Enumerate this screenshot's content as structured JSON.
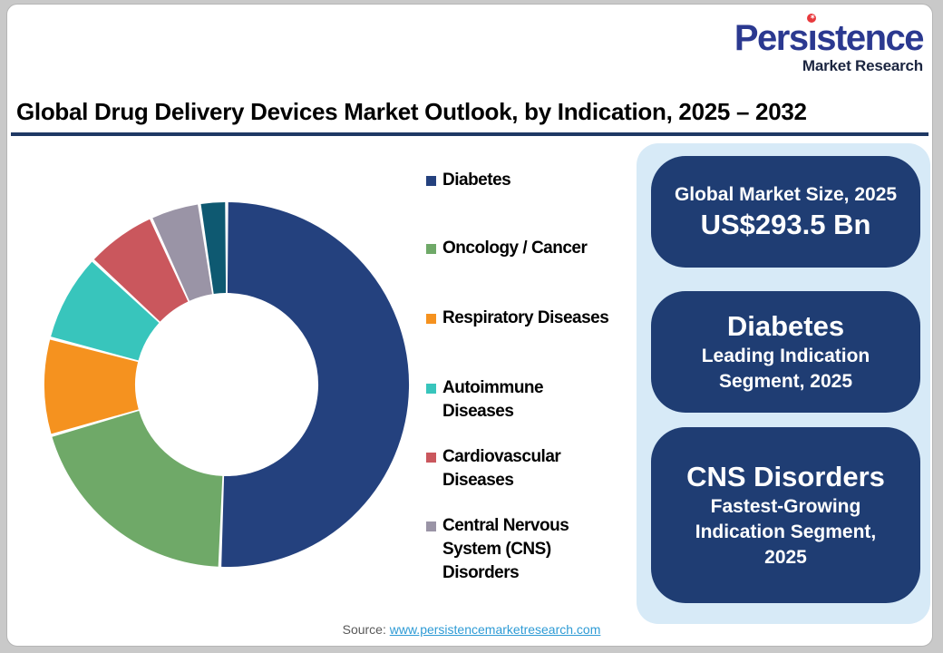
{
  "logo": {
    "brand": "Persistence",
    "brand_parts": [
      "Pers",
      "ı",
      "stence"
    ],
    "subtitle": "Market Research",
    "star_icon": "✶",
    "brand_color": "#2B3990",
    "dot_color": "#E8393D",
    "subtitle_color": "#1B2540"
  },
  "title": "Global Drug Delivery Devices Market Outlook, by Indication, 2025 – 2032",
  "chart_data": {
    "type": "pie",
    "style": "donut",
    "title": "Global Drug Delivery Devices Market Outlook, by Indication, 2025 – 2032",
    "value_unit": "% market share (estimated from arc angles; no numeric labels shown)",
    "start_angle_deg": 0,
    "direction": "clockwise",
    "inner_radius_pct": 50,
    "legend_position": "right",
    "series": [
      {
        "label": "Diabetes",
        "legend_lines": [
          "Diabetes"
        ],
        "value": 50.6,
        "color": "#24417E"
      },
      {
        "label": "Oncology / Cancer",
        "legend_lines": [
          "Oncology / Cancer"
        ],
        "value": 19.9,
        "color": "#6FA968"
      },
      {
        "label": "Respiratory Diseases",
        "legend_lines": [
          "Respiratory Diseases"
        ],
        "value": 8.6,
        "color": "#F5921F"
      },
      {
        "label": "Autoimmune Diseases",
        "legend_lines": [
          "Autoimmune",
          "Diseases"
        ],
        "value": 7.8,
        "color": "#38C5BC"
      },
      {
        "label": "Cardiovascular Diseases",
        "legend_lines": [
          "Cardiovascular",
          "Diseases"
        ],
        "value": 6.3,
        "color": "#CA575D"
      },
      {
        "label": "Central Nervous System (CNS) Disorders",
        "legend_lines": [
          "Central Nervous",
          "System (CNS)",
          "Disorders"
        ],
        "value": 4.4,
        "color": "#9A94A6"
      },
      {
        "label": "",
        "value": 2.4,
        "color": "#0E5971",
        "in_legend": false
      }
    ]
  },
  "cards": [
    {
      "title": "Global Market Size, 2025",
      "value": "US$293.5 Bn"
    },
    {
      "title": "Diabetes",
      "subtitle": "Leading Indication Segment, 2025"
    },
    {
      "title": "CNS Disorders",
      "subtitle": "Fastest-Growing Indication Segment, 2025"
    }
  ],
  "source": {
    "prefix": "Source: ",
    "link_text": "www.persistencemarketresearch.com"
  },
  "colors": {
    "page_background": "#ffffff",
    "outer_frame": "#c9c9c9",
    "title_rule": "#1F3864",
    "panel_background": "#D7EAF7",
    "card_background": "#1F3D73",
    "card_text": "#ffffff",
    "source_text": "#595959",
    "source_link": "#2E9BD5"
  }
}
